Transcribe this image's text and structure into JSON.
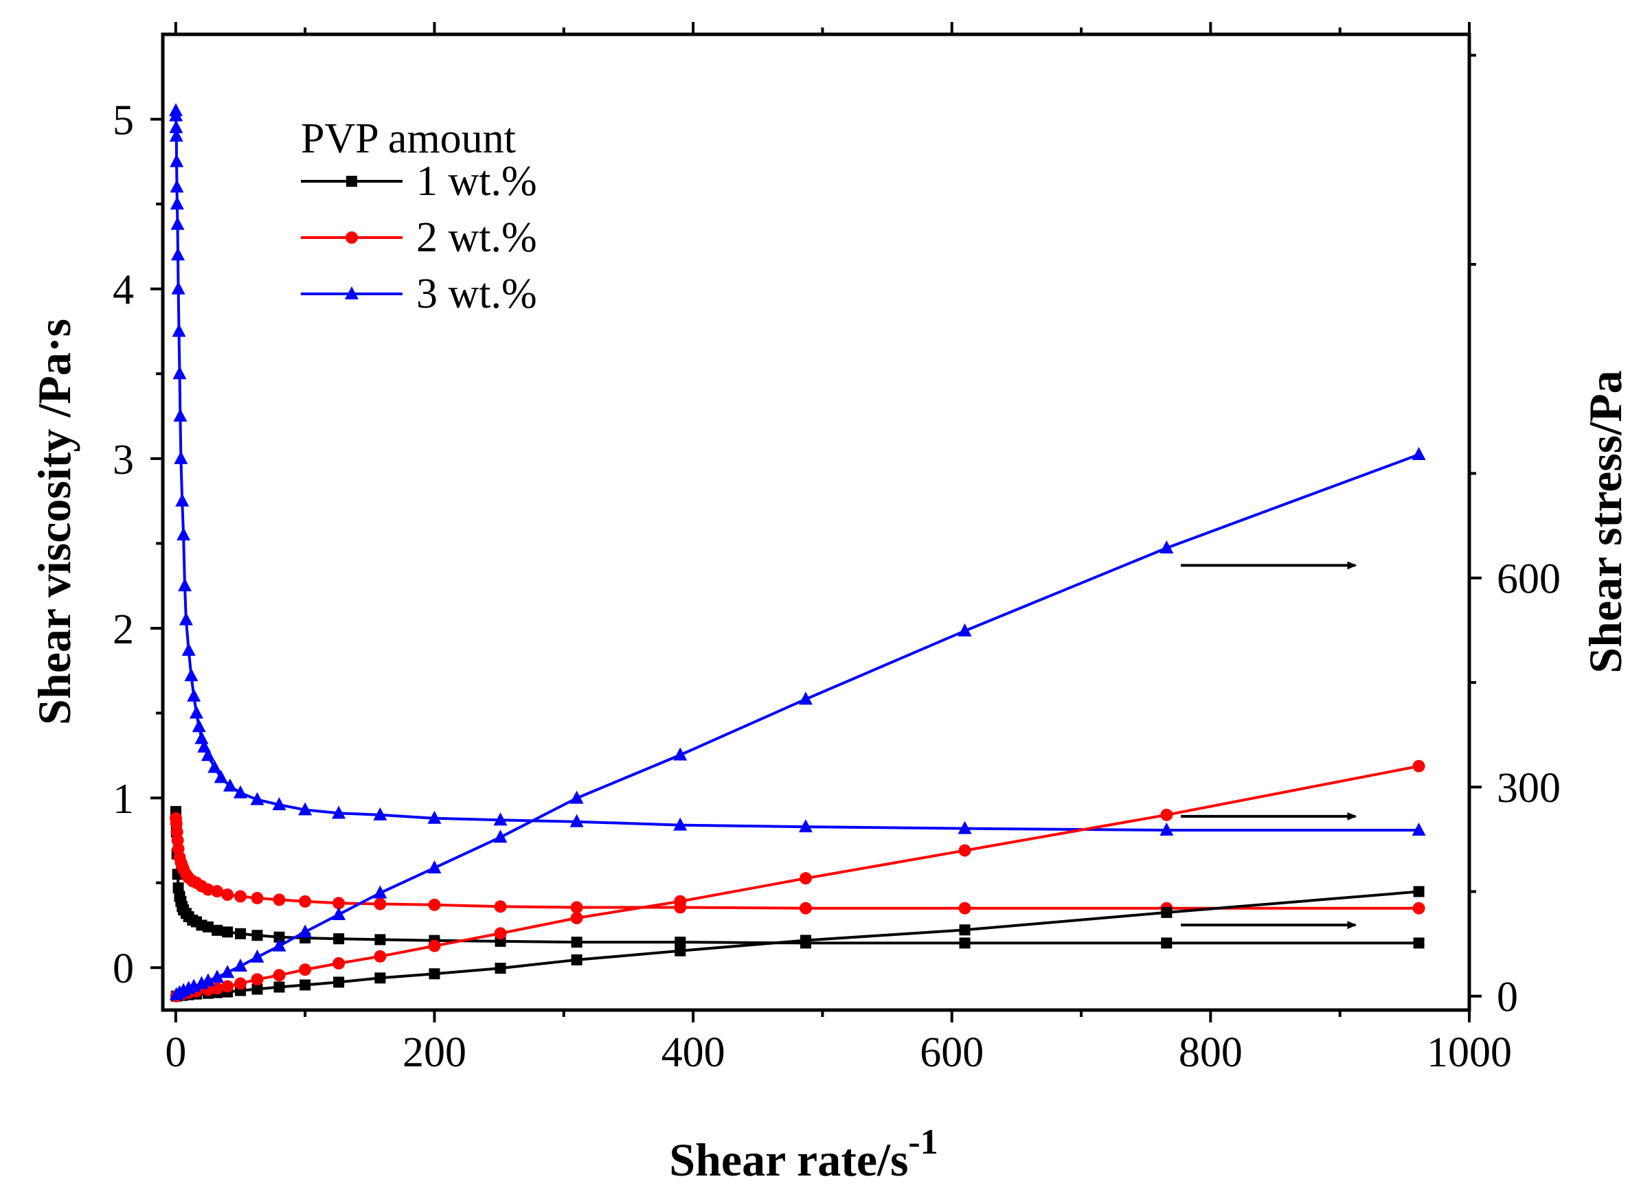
{
  "chart_data": {
    "type": "line",
    "title": "",
    "xlabel": "Shear rate/s",
    "xlabel_superscript": "-1",
    "ylabel_left": "Shear viscosity /Pa·s",
    "ylabel_right": "Shear stress/Pa",
    "xlim": [
      -10,
      1000
    ],
    "ylim_left": [
      -0.25,
      5.5
    ],
    "ylim_right": [
      -20,
      1380
    ],
    "xticks": [
      0,
      200,
      400,
      600,
      800,
      1000
    ],
    "xtick_labels": [
      "0",
      "200",
      "400",
      "600",
      "800",
      "1000"
    ],
    "yticks_left": [
      0,
      1,
      2,
      3,
      4,
      5
    ],
    "ytick_labels_left": [
      "0",
      "1",
      "2",
      "3",
      "4",
      "5"
    ],
    "yticks_right": [
      0,
      300,
      600
    ],
    "ytick_labels_right": [
      "0",
      "300",
      "600"
    ],
    "legend": {
      "title": "PVP amount",
      "placement": "top-left",
      "entries": [
        "1 wt.%",
        "2 wt.%",
        "3 wt.%"
      ]
    },
    "colors": [
      "#000000",
      "#ff0000",
      "#0000ff"
    ],
    "markers": [
      "square",
      "circle",
      "triangle"
    ],
    "series": [
      {
        "name": "1 wt.%",
        "kind": "viscosity",
        "axis": "left",
        "color": "#000000",
        "marker": "square",
        "x": [
          0.1,
          0.5,
          1,
          1.5,
          2,
          3,
          4,
          5,
          6,
          8,
          10,
          13,
          16,
          20,
          25,
          32,
          40,
          50,
          63,
          80,
          100,
          126,
          158,
          200,
          251,
          310,
          390,
          487,
          610,
          766,
          961
        ],
        "y": [
          0.92,
          0.8,
          0.67,
          0.55,
          0.47,
          0.42,
          0.39,
          0.36,
          0.34,
          0.32,
          0.3,
          0.28,
          0.27,
          0.25,
          0.24,
          0.22,
          0.21,
          0.2,
          0.19,
          0.18,
          0.175,
          0.17,
          0.165,
          0.16,
          0.155,
          0.15,
          0.15,
          0.145,
          0.145,
          0.145,
          0.145
        ]
      },
      {
        "name": "2 wt.%",
        "kind": "viscosity",
        "axis": "left",
        "color": "#ff0000",
        "marker": "circle",
        "x": [
          0.1,
          0.5,
          1,
          1.5,
          2,
          3,
          4,
          5,
          6,
          8,
          10,
          13,
          16,
          20,
          25,
          32,
          40,
          50,
          63,
          80,
          100,
          126,
          158,
          200,
          251,
          310,
          390,
          487,
          610,
          766,
          961
        ],
        "y": [
          0.88,
          0.85,
          0.8,
          0.75,
          0.7,
          0.65,
          0.62,
          0.6,
          0.58,
          0.55,
          0.53,
          0.51,
          0.5,
          0.48,
          0.46,
          0.45,
          0.43,
          0.42,
          0.41,
          0.4,
          0.39,
          0.38,
          0.375,
          0.37,
          0.36,
          0.355,
          0.355,
          0.35,
          0.35,
          0.35,
          0.35
        ]
      },
      {
        "name": "3 wt.%",
        "kind": "viscosity",
        "axis": "left",
        "color": "#0000ff",
        "marker": "triangle",
        "x": [
          0.1,
          0.2,
          0.3,
          0.5,
          0.7,
          0.9,
          1.1,
          1.4,
          1.7,
          2.0,
          2.5,
          3.0,
          3.5,
          4,
          5,
          6,
          7,
          8,
          10,
          12,
          14,
          16,
          18,
          20,
          22,
          25,
          30,
          35,
          42,
          50,
          63,
          80,
          100,
          126,
          158,
          200,
          251,
          310,
          390,
          487,
          610,
          766,
          961
        ],
        "y": [
          5.05,
          5.02,
          4.95,
          4.9,
          4.75,
          4.6,
          4.5,
          4.38,
          4.2,
          4.0,
          3.75,
          3.5,
          3.25,
          3.0,
          2.75,
          2.55,
          2.25,
          2.05,
          1.87,
          1.72,
          1.6,
          1.5,
          1.42,
          1.35,
          1.3,
          1.25,
          1.18,
          1.12,
          1.07,
          1.03,
          0.99,
          0.96,
          0.93,
          0.91,
          0.9,
          0.88,
          0.87,
          0.86,
          0.84,
          0.83,
          0.82,
          0.81,
          0.81
        ]
      },
      {
        "name": "1 wt.%",
        "kind": "stress",
        "axis": "right",
        "color": "#000000",
        "marker": "square",
        "x": [
          0.5,
          5,
          10,
          16,
          25,
          32,
          40,
          50,
          63,
          80,
          100,
          126,
          158,
          200,
          251,
          310,
          390,
          487,
          610,
          766,
          961
        ],
        "y": [
          0,
          1,
          2,
          3,
          4,
          5,
          6,
          8,
          10,
          13,
          16,
          20,
          26,
          32,
          40,
          52,
          65,
          80,
          95,
          120,
          150
        ]
      },
      {
        "name": "2 wt.%",
        "kind": "stress",
        "axis": "right",
        "color": "#ff0000",
        "marker": "circle",
        "x": [
          0.5,
          5,
          10,
          16,
          25,
          32,
          40,
          50,
          63,
          80,
          100,
          126,
          158,
          200,
          251,
          310,
          390,
          487,
          610,
          766,
          961
        ],
        "y": [
          0,
          3,
          5,
          7,
          9,
          11,
          14,
          18,
          24,
          30,
          38,
          47,
          57,
          72,
          90,
          112,
          136,
          169,
          209,
          260,
          330
        ]
      },
      {
        "name": "3 wt.%",
        "kind": "stress",
        "axis": "right",
        "color": "#0000ff",
        "marker": "triangle",
        "x": [
          0.5,
          3,
          6,
          10,
          14,
          20,
          25,
          32,
          40,
          50,
          63,
          80,
          100,
          126,
          158,
          200,
          251,
          310,
          390,
          487,
          610,
          766,
          961
        ],
        "y": [
          2,
          5,
          8,
          11,
          14,
          18,
          22,
          27,
          34,
          43,
          56,
          72,
          92,
          117,
          148,
          184,
          228,
          284,
          346,
          426,
          524,
          643,
          777
        ]
      }
    ],
    "annotations": [
      {
        "type": "arrow",
        "text": "",
        "direction": "right",
        "x_from": 777,
        "x_to": 912,
        "y_right": 618
      },
      {
        "type": "arrow",
        "text": "",
        "direction": "right",
        "x_from": 777,
        "x_to": 912,
        "y_right": 258
      },
      {
        "type": "arrow",
        "text": "",
        "direction": "right",
        "x_from": 777,
        "x_to": 912,
        "y_right": 102
      }
    ]
  }
}
